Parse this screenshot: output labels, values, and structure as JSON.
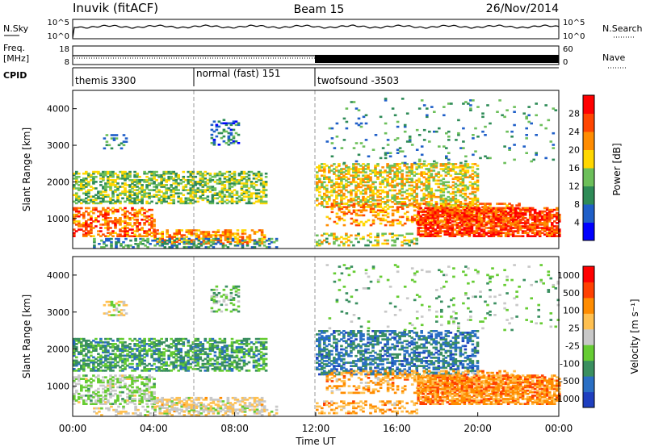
{
  "header": {
    "station": "Inuvik (fitACF)",
    "beam": "Beam 15",
    "date": "26/Nov/2014"
  },
  "noise_panel": {
    "left_label": "N.Sky",
    "left_ticks": [
      "10^5",
      "10^0"
    ],
    "right_ticks": [
      "10^5",
      "10^0"
    ],
    "right_label": "N.Search",
    "right_legend_style": "dotted"
  },
  "freq_panel": {
    "left_label_1": "Freq.",
    "left_label_2": "[MHz]",
    "left_ticks": [
      "18",
      "8"
    ],
    "right_ticks": [
      "60",
      "0"
    ],
    "right_label": "Nave",
    "right_legend_style": "dotted"
  },
  "cpid_panel": {
    "label": "CPID",
    "modes": [
      {
        "name": "themis 3300",
        "start_hour": 0,
        "end_hour": 6
      },
      {
        "name": "normal (fast) 151",
        "start_hour": 6,
        "end_hour": 12
      },
      {
        "name": "twofsound -3503",
        "start_hour": 12,
        "end_hour": 24
      }
    ]
  },
  "chart_data": [
    {
      "type": "heatmap",
      "name": "power",
      "ylabel": "Slant Range [km]",
      "xlim_hours": [
        0,
        24
      ],
      "ylim_km": [
        180,
        4500
      ],
      "yticks": [
        "1000",
        "2000",
        "3000",
        "4000"
      ],
      "colorbar": {
        "label": "Power [dB]",
        "ticks": [
          "28",
          "24",
          "20",
          "16",
          "12",
          "8",
          "4"
        ],
        "colors": [
          "#0000ff",
          "#1f5fc8",
          "#2e8b57",
          "#6cbf5a",
          "#ffd700",
          "#ff8c00",
          "#ff4500",
          "#ff0000"
        ]
      }
    },
    {
      "type": "heatmap",
      "name": "velocity",
      "ylabel": "Slant Range [km]",
      "xlim_hours": [
        0,
        24
      ],
      "ylim_km": [
        180,
        4500
      ],
      "yticks": [
        "1000",
        "2000",
        "3000",
        "4000"
      ],
      "colorbar": {
        "label": "Velocity [m s⁻¹]",
        "ticks": [
          "1000",
          "500",
          "100",
          "25",
          "-25",
          "-100",
          "-500",
          "-1000"
        ],
        "colors": [
          "#1f3fbf",
          "#2a6fc4",
          "#3a8f60",
          "#66cc33",
          "#c8c8c8",
          "#ffc050",
          "#ff8c00",
          "#ff4000",
          "#ff0000"
        ]
      }
    }
  ],
  "x_axis": {
    "ticks": [
      "00:00",
      "04:00",
      "08:00",
      "12:00",
      "16:00",
      "20:00",
      "00:00"
    ],
    "label": "Time UT"
  },
  "colors": {
    "axis": "#000000",
    "mode_change_dash": "#999999"
  }
}
